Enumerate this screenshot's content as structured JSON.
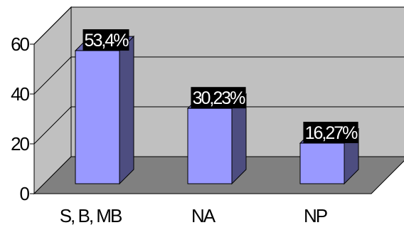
{
  "chart_data": {
    "type": "bar",
    "style": "3d-column",
    "categories": [
      "S, B, MB",
      "NA",
      "NP"
    ],
    "values": [
      53.4,
      30.23,
      16.27
    ],
    "data_labels": [
      "53,4%",
      "30,23%",
      "16,27%"
    ],
    "ylim": [
      0,
      60
    ],
    "yticks": [
      0,
      20,
      40,
      60
    ],
    "ytick_labels": [
      "0",
      "20",
      "40",
      "60"
    ],
    "title": "",
    "xlabel": "",
    "ylabel": "",
    "grid": true,
    "legend": false,
    "colors": {
      "bar_front": "#9999ff",
      "bar_side": "#4d4d80",
      "bar_top": "#6666b3",
      "back_wall": "#c0c0c0",
      "side_wall": "#c0c0c0",
      "floor": "#808080",
      "label_bg": "#000000",
      "label_text": "#ffffff"
    }
  }
}
